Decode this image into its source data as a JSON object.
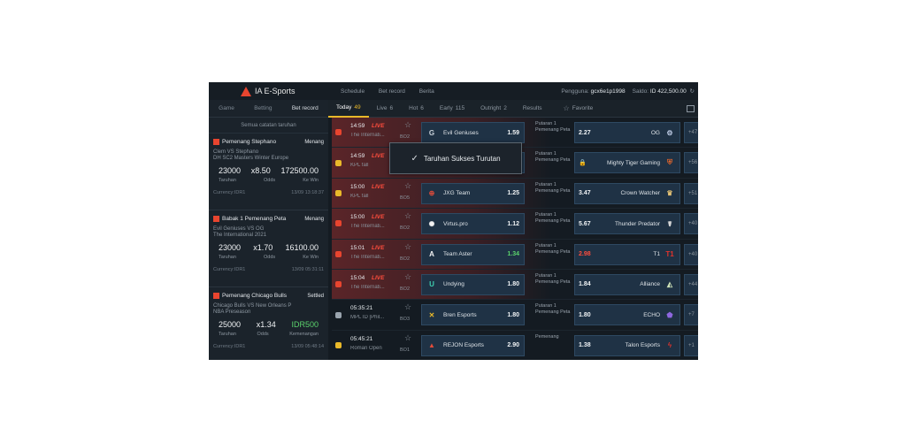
{
  "app": {
    "name": "IA E-Sports"
  },
  "sidebar": {
    "tabs": [
      "Game",
      "Betting",
      "Bet record"
    ],
    "title": "Semua catatan taruhan",
    "bets": [
      {
        "title": "Pemenang Stephano",
        "status": "Menang",
        "teams": "Clem VS Stephano",
        "event": "DH SC2 Masters Winter Europe",
        "nums": [
          "23000",
          "x8.50",
          "172500.00"
        ],
        "labels": [
          "Taruhan",
          "Odds",
          "Ke Win"
        ],
        "currency": "Currency:IDR1",
        "time": "13/09 13:18:37",
        "icon_color": "#e8452f"
      },
      {
        "title": "Babak 1 Pemenang Peta",
        "status": "Menang",
        "teams": "Evil Geniuses VS OG",
        "event": "The International 2021",
        "nums": [
          "23000",
          "x1.70",
          "16100.00"
        ],
        "labels": [
          "Taruhan",
          "Odds",
          "Ke Win"
        ],
        "currency": "Currency:IDR1",
        "time": "13/09 05:31:11",
        "icon_color": "#e8452f"
      },
      {
        "title": "Pemenang Chicago Bulls",
        "status": "Settled",
        "teams": "Chicago Bulls VS New Orleans P",
        "event": "NBA Preseason",
        "nums": [
          "25000",
          "x1.34",
          "IDR500"
        ],
        "labels": [
          "Taruhan",
          "Odds",
          "Kemenangan"
        ],
        "currency": "Currency:IDR1",
        "time": "13/09 05:48:14",
        "icon_color": "#e8452f"
      }
    ]
  },
  "topbar": {
    "nav": [
      "Schedule",
      "Bet record",
      "Berita"
    ],
    "user_label": "Pengguna:",
    "user": "gcx6e1p1998",
    "balance_label": "Saldo:",
    "balance": "ID 422,500.00"
  },
  "tabs": [
    {
      "label": "Today",
      "count": "49",
      "active": true
    },
    {
      "label": "Live",
      "count": "6"
    },
    {
      "label": "Hot",
      "count": "6"
    },
    {
      "label": "Early",
      "count": "115"
    },
    {
      "label": "Outright",
      "count": "2"
    },
    {
      "label": "Results",
      "count": ""
    },
    {
      "label": "Favorite",
      "count": ""
    }
  ],
  "matches": [
    {
      "time": "14:59",
      "live": "LIVE",
      "event": "The Internati...",
      "bo": "BO2",
      "icon_color": "#e8452f",
      "home": "Evil Geniuses",
      "home_odd": "1.59",
      "market": "Putaran 1 Pemenang Peta",
      "away": "OG",
      "away_odd": "2.27",
      "more": "+47",
      "home_logo": "G",
      "home_logo_color": "#c9d2da",
      "away_logo": "⚙",
      "away_logo_color": "#b9c7e0"
    },
    {
      "time": "14:59",
      "live": "LIVE",
      "event": "KPL fall",
      "bo": "",
      "icon_color": "#e9b92a",
      "home": "",
      "home_odd": "",
      "market": "Putaran 1 Pemenang Peta",
      "away": "Mighty Tiger Gaming",
      "away_odd": "",
      "more": "+56",
      "home_logo": "",
      "home_logo_color": "#ffffff",
      "away_logo": "⛨",
      "away_logo_color": "#e2662c",
      "locked": true
    },
    {
      "time": "15:00",
      "live": "LIVE",
      "event": "KPL fall",
      "bo": "BO5",
      "icon_color": "#e9b92a",
      "home": "JXG Team",
      "home_odd": "1.25",
      "market": "Putaran 1 Pemenang Peta",
      "away": "Crown Watcher",
      "away_odd": "3.47",
      "more": "+51",
      "home_logo": "⊕",
      "home_logo_color": "#e24c3a",
      "away_logo": "♛",
      "away_logo_color": "#e2c074"
    },
    {
      "time": "15:00",
      "live": "LIVE",
      "event": "The Internati...",
      "bo": "BO2",
      "icon_color": "#e8452f",
      "home": "Virtus.pro",
      "home_odd": "1.12",
      "market": "Putaran 1 Pemenang Peta",
      "away": "Thunder Predator",
      "away_odd": "5.67",
      "more": "+40",
      "home_logo": "✺",
      "home_logo_color": "#f2f2f2",
      "away_logo": "☤",
      "away_logo_color": "#d8d8d8"
    },
    {
      "time": "15:01",
      "live": "LIVE",
      "event": "The Internati...",
      "bo": "BO2",
      "icon_color": "#e8452f",
      "home": "Team Aster",
      "home_odd": "1.34",
      "market": "Putaran 1 Pemenang Peta",
      "away": "T1",
      "away_odd": "2.98",
      "more": "+40",
      "home_logo": "A",
      "home_logo_color": "#f2f2f2",
      "away_logo": "T1",
      "away_logo_color": "#e2332c",
      "home_odd_color": "green",
      "away_odd_color": "red"
    },
    {
      "time": "15:04",
      "live": "LIVE",
      "event": "The Internati...",
      "bo": "BO2",
      "icon_color": "#e8452f",
      "home": "Undying",
      "home_odd": "1.80",
      "market": "Putaran 1 Pemenang Peta",
      "away": "Alliance",
      "away_odd": "1.84",
      "more": "+44",
      "home_logo": "U",
      "home_logo_color": "#3fd0b0",
      "away_logo": "◭",
      "away_logo_color": "#cfe3b8"
    },
    {
      "time": "05:35:21",
      "live": "",
      "event": "MPL ID [Phil...",
      "bo": "BO3",
      "icon_color": "#9aa4ae",
      "home": "Bren Esports",
      "home_odd": "1.80",
      "market": "Putaran 1 Pemenang Peta",
      "away": "ECHO",
      "away_odd": "1.80",
      "more": "+7",
      "home_logo": "✕",
      "home_logo_color": "#e9b92a",
      "away_logo": "⬟",
      "away_logo_color": "#8e67e0"
    },
    {
      "time": "05:45:21",
      "live": "",
      "event": "Roman Open",
      "bo": "BO1",
      "icon_color": "#e9b92a",
      "home": "REJON Esports",
      "home_odd": "2.90",
      "market": "Pemenang",
      "away": "Talon Esports",
      "away_odd": "1.38",
      "more": "+1",
      "home_logo": "▲",
      "home_logo_color": "#e24c3a",
      "away_logo": "ϟ",
      "away_logo_color": "#e2332c"
    }
  ],
  "toast": {
    "message": "Taruhan Sukses Turutan"
  },
  "colors": {
    "accent": "#e9b92a",
    "live": "#ff4d3d",
    "odd_box": "#1f3245",
    "background": "#141b22"
  }
}
